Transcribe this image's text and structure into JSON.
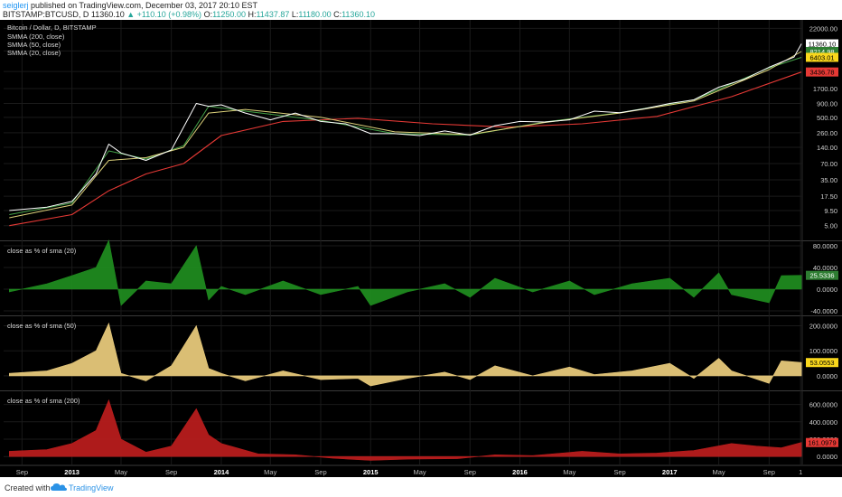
{
  "header": {
    "user": "seiglerj",
    "published": "published on TradingView.com, December 03, 2017 20:10 EST",
    "symbol": "BITSTAMP:BTCUSD, D",
    "price": "11360.10",
    "change": "▲ +110.10 (+0.98%)",
    "o_label": "O:",
    "o_val": "11250.00",
    "h_label": "H:",
    "h_val": "11437.87",
    "l_label": "L:",
    "l_val": "11180.00",
    "c_label": "C:",
    "c_val": "11360.10"
  },
  "footer": {
    "created_with": "Created with",
    "brand": "TradingView"
  },
  "colors": {
    "background": "#000000",
    "price": "#ffffff",
    "smma200": "#e53935",
    "smma50": "#dcd17a",
    "smma20": "#43a047",
    "osc20": "#1f8a1f",
    "osc50": "#e6c87a",
    "osc200": "#b71c1c",
    "badge_price": "#ffffff",
    "badge_50": "#2e7d32",
    "badge_20": "#f9d71c",
    "badge_200": "#e53935"
  },
  "chart_data": [
    {
      "type": "line",
      "title": "Bitcoin / Dollar, D, BITSTAMP",
      "y_scale": "log",
      "series": [
        {
          "name": "BTCUSD close",
          "x": [
            "2012-08",
            "2012-11",
            "2013-01",
            "2013-03",
            "2013-04",
            "2013-05",
            "2013-07",
            "2013-09",
            "2013-11",
            "2013-12",
            "2014-01",
            "2014-03",
            "2014-05",
            "2014-07",
            "2014-09",
            "2014-11",
            "2015-01",
            "2015-03",
            "2015-05",
            "2015-07",
            "2015-09",
            "2015-11",
            "2016-01",
            "2016-03",
            "2016-05",
            "2016-07",
            "2016-09",
            "2016-11",
            "2017-01",
            "2017-03",
            "2017-05",
            "2017-07",
            "2017-09",
            "2017-11",
            "2017-12-03"
          ],
          "values": [
            9.5,
            11,
            14,
            45,
            160,
            110,
            80,
            125,
            900,
            800,
            850,
            600,
            450,
            600,
            420,
            380,
            250,
            250,
            230,
            280,
            235,
            350,
            420,
            410,
            450,
            650,
            610,
            720,
            900,
            1050,
            1800,
            2500,
            4200,
            6500,
            11360
          ]
        },
        {
          "name": "SMMA (200, close)",
          "x": [
            "2012-08",
            "2013-01",
            "2013-04",
            "2013-07",
            "2013-10",
            "2014-01",
            "2014-06",
            "2014-12",
            "2015-06",
            "2015-12",
            "2016-06",
            "2016-12",
            "2017-06",
            "2017-12-03"
          ],
          "values": [
            5,
            8,
            22,
            45,
            70,
            230,
            420,
            480,
            380,
            330,
            380,
            520,
            1200,
            3436.78
          ]
        },
        {
          "name": "SMMA (50, close)",
          "x": [
            "2012-08",
            "2013-01",
            "2013-04",
            "2013-07",
            "2013-10",
            "2013-12",
            "2014-03",
            "2014-09",
            "2015-03",
            "2015-09",
            "2016-03",
            "2016-09",
            "2017-03",
            "2017-09",
            "2017-12-03"
          ],
          "values": [
            7,
            12,
            80,
            90,
            140,
            600,
            700,
            500,
            270,
            240,
            400,
            600,
            1000,
            3800,
            8214.98
          ]
        },
        {
          "name": "SMMA (20, close)",
          "x": [
            "2012-08",
            "2013-01",
            "2013-04",
            "2013-07",
            "2013-10",
            "2013-12",
            "2014-03",
            "2014-09",
            "2015-03",
            "2015-09",
            "2016-03",
            "2016-09",
            "2017-03",
            "2017-09",
            "2017-12-03"
          ],
          "values": [
            8,
            13,
            120,
            85,
            150,
            800,
            650,
            440,
            250,
            235,
            410,
            610,
            1050,
            4100,
            6403.01
          ]
        }
      ],
      "y_ticks": [
        "22000.00",
        "8400.00",
        "3500.00",
        "1700.00",
        "900.00",
        "500.00",
        "260.00",
        "140.00",
        "70.00",
        "35.00",
        "17.50",
        "9.50",
        "5.00"
      ],
      "last_values": {
        "price": "11360.10",
        "smma50": "8214.98",
        "smma20": "6403.01",
        "smma200": "3436.78"
      },
      "legend": [
        "SMMA (200, close)",
        "SMMA (50, close)",
        "SMMA (20, close)"
      ],
      "legend_placement": "top-left"
    },
    {
      "type": "area",
      "title": "close as % of sma (20)",
      "ylim": [
        -40,
        80
      ],
      "y_ticks": [
        "80.0000",
        "40.0000",
        "0.0000",
        "-40.0000"
      ],
      "last_value": "25.5336",
      "x": [
        "2012-08",
        "2012-11",
        "2013-01",
        "2013-03",
        "2013-04",
        "2013-05",
        "2013-07",
        "2013-09",
        "2013-11",
        "2013-12",
        "2014-01",
        "2014-03",
        "2014-06",
        "2014-09",
        "2014-12",
        "2015-01",
        "2015-04",
        "2015-07",
        "2015-09",
        "2015-11",
        "2016-02",
        "2016-05",
        "2016-07",
        "2016-10",
        "2017-01",
        "2017-03",
        "2017-05",
        "2017-06",
        "2017-09",
        "2017-10",
        "2017-12-03"
      ],
      "values": [
        -5,
        10,
        25,
        40,
        90,
        -30,
        15,
        10,
        80,
        -20,
        5,
        -10,
        15,
        -10,
        5,
        -30,
        -5,
        10,
        -15,
        20,
        -5,
        15,
        -10,
        10,
        20,
        -15,
        30,
        -10,
        -25,
        25,
        25.5336
      ]
    },
    {
      "type": "area",
      "title": "close as % of sma (50)",
      "ylim": [
        -40,
        220
      ],
      "y_ticks": [
        "200.0000",
        "100.0000",
        "0.0000"
      ],
      "last_value": "53.0553",
      "x": [
        "2012-08",
        "2012-11",
        "2013-01",
        "2013-03",
        "2013-04",
        "2013-05",
        "2013-07",
        "2013-09",
        "2013-11",
        "2013-12",
        "2014-01",
        "2014-03",
        "2014-06",
        "2014-09",
        "2014-12",
        "2015-01",
        "2015-04",
        "2015-07",
        "2015-09",
        "2015-11",
        "2016-02",
        "2016-05",
        "2016-07",
        "2016-10",
        "2017-01",
        "2017-03",
        "2017-05",
        "2017-06",
        "2017-09",
        "2017-10",
        "2017-12-03"
      ],
      "values": [
        10,
        20,
        50,
        100,
        210,
        10,
        -20,
        40,
        200,
        30,
        10,
        -20,
        20,
        -15,
        -10,
        -40,
        -10,
        15,
        -15,
        40,
        0,
        35,
        5,
        20,
        50,
        -10,
        70,
        20,
        -30,
        60,
        53.0553
      ]
    },
    {
      "type": "area",
      "title": "close as % of sma (200)",
      "ylim": [
        -50,
        700
      ],
      "y_ticks": [
        "600.0000",
        "400.0000",
        "200.0000",
        "0.0000"
      ],
      "last_value": "161.0979",
      "x": [
        "2012-08",
        "2012-11",
        "2013-01",
        "2013-03",
        "2013-04",
        "2013-05",
        "2013-07",
        "2013-09",
        "2013-11",
        "2013-12",
        "2014-01",
        "2014-04",
        "2014-07",
        "2014-10",
        "2015-01",
        "2015-04",
        "2015-08",
        "2015-11",
        "2016-02",
        "2016-06",
        "2016-09",
        "2016-12",
        "2017-03",
        "2017-06",
        "2017-08",
        "2017-10",
        "2017-12-03"
      ],
      "values": [
        60,
        80,
        150,
        300,
        650,
        200,
        50,
        120,
        550,
        250,
        150,
        30,
        20,
        -20,
        -45,
        -30,
        -25,
        20,
        10,
        60,
        30,
        40,
        70,
        150,
        120,
        100,
        161.0979
      ]
    }
  ],
  "x_axis_labels": [
    "Sep",
    "2013",
    "May",
    "Sep",
    "2014",
    "May",
    "Sep",
    "2015",
    "May",
    "Sep",
    "2016",
    "May",
    "Sep",
    "2017",
    "May",
    "Sep",
    "1"
  ]
}
